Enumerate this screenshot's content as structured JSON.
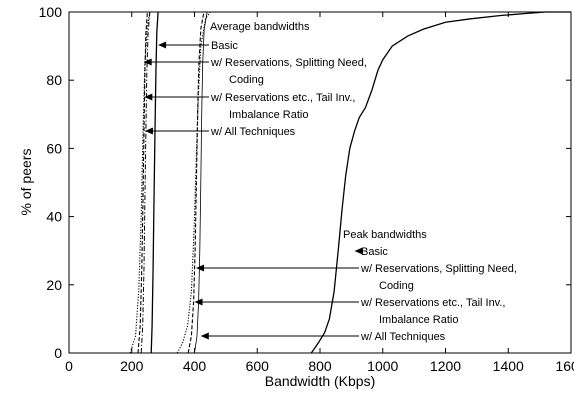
{
  "chart_data": {
    "type": "line",
    "xlabel": "Bandwidth (Kbps)",
    "ylabel": "% of peers",
    "xlim": [
      0,
      1600
    ],
    "ylim": [
      0,
      100
    ],
    "x_ticks": [
      0,
      200,
      400,
      600,
      800,
      1000,
      1200,
      1400,
      1600
    ],
    "y_ticks": [
      0,
      20,
      40,
      60,
      80,
      100
    ],
    "grid": false,
    "legend": "none",
    "series": [
      {
        "group": "Average bandwidths",
        "name": "Basic",
        "style": "solid",
        "points": [
          [
            262,
            0
          ],
          [
            265,
            8
          ],
          [
            268,
            25
          ],
          [
            271,
            45
          ],
          [
            274,
            65
          ],
          [
            277,
            82
          ],
          [
            280,
            94
          ],
          [
            284,
            100
          ]
        ]
      },
      {
        "group": "Average bandwidths",
        "name": "w/ Reservations, Splitting Need, Coding",
        "style": "dashed",
        "points": [
          [
            220,
            0
          ],
          [
            227,
            8
          ],
          [
            232,
            25
          ],
          [
            236,
            45
          ],
          [
            239,
            65
          ],
          [
            242,
            82
          ],
          [
            245,
            94
          ],
          [
            250,
            100
          ]
        ]
      },
      {
        "group": "Average bandwidths",
        "name": "w/ Reservations etc., Tail Inv., Imbalance Ratio",
        "style": "dotted",
        "points": [
          [
            195,
            0
          ],
          [
            212,
            5
          ],
          [
            222,
            18
          ],
          [
            230,
            40
          ],
          [
            236,
            65
          ],
          [
            242,
            85
          ],
          [
            250,
            96
          ],
          [
            258,
            100
          ]
        ]
      },
      {
        "group": "Average bandwidths",
        "name": "w/ All Techniques",
        "style": "dashdot",
        "points": [
          [
            230,
            0
          ],
          [
            235,
            8
          ],
          [
            239,
            25
          ],
          [
            242,
            45
          ],
          [
            245,
            65
          ],
          [
            248,
            82
          ],
          [
            252,
            94
          ],
          [
            258,
            100
          ]
        ]
      },
      {
        "group": "Peak bandwidths",
        "name": "Basic",
        "style": "solid",
        "points": [
          [
            772,
            0
          ],
          [
            780,
            1
          ],
          [
            795,
            3
          ],
          [
            815,
            6
          ],
          [
            830,
            10
          ],
          [
            845,
            18
          ],
          [
            858,
            30
          ],
          [
            870,
            42
          ],
          [
            882,
            52
          ],
          [
            895,
            60
          ],
          [
            910,
            65
          ],
          [
            925,
            69
          ],
          [
            945,
            72
          ],
          [
            965,
            77
          ],
          [
            985,
            83
          ],
          [
            1000,
            86
          ],
          [
            1030,
            90
          ],
          [
            1080,
            93
          ],
          [
            1130,
            95
          ],
          [
            1200,
            97
          ],
          [
            1280,
            98
          ],
          [
            1380,
            99
          ],
          [
            1460,
            99.6
          ],
          [
            1520,
            100
          ],
          [
            1600,
            100
          ]
        ]
      },
      {
        "group": "Peak bandwidths",
        "name": "w/ Reservations, Splitting Need, Coding",
        "style": "dashed",
        "points": [
          [
            380,
            0
          ],
          [
            390,
            5
          ],
          [
            397,
            15
          ],
          [
            402,
            30
          ],
          [
            406,
            50
          ],
          [
            410,
            70
          ],
          [
            414,
            85
          ],
          [
            420,
            95
          ],
          [
            430,
            100
          ]
        ]
      },
      {
        "group": "Peak bandwidths",
        "name": "w/ Reservations etc., Tail Inv., Imbalance Ratio",
        "style": "dotted",
        "points": [
          [
            345,
            0
          ],
          [
            362,
            3
          ],
          [
            378,
            8
          ],
          [
            390,
            18
          ],
          [
            398,
            35
          ],
          [
            405,
            55
          ],
          [
            412,
            75
          ],
          [
            420,
            90
          ],
          [
            435,
            98
          ],
          [
            450,
            100
          ]
        ]
      },
      {
        "group": "Peak bandwidths",
        "name": "w/ All Techniques",
        "style": "solid-thin",
        "points": [
          [
            400,
            0
          ],
          [
            408,
            5
          ],
          [
            413,
            15
          ],
          [
            417,
            30
          ],
          [
            420,
            50
          ],
          [
            423,
            70
          ],
          [
            426,
            85
          ],
          [
            431,
            95
          ],
          [
            440,
            100
          ]
        ]
      }
    ],
    "annotations": [
      {
        "id": "avg-title",
        "text": "Average bandwidths"
      },
      {
        "id": "avg-basic",
        "text": "Basic",
        "target": [
          284,
          90
        ]
      },
      {
        "id": "avg-res-1",
        "text": "w/ Reservations, Splitting Need,",
        "target": [
          238,
          85
        ]
      },
      {
        "id": "avg-res-2",
        "text": "Coding"
      },
      {
        "id": "avg-tail-1",
        "text": "w/ Reservations etc., Tail Inv.,",
        "target": [
          240,
          75
        ]
      },
      {
        "id": "avg-tail-2",
        "text": "Imbalance Ratio"
      },
      {
        "id": "avg-all",
        "text": "w/ All Techniques",
        "target": [
          242,
          65
        ]
      },
      {
        "id": "peak-title",
        "text": "Peak bandwidths"
      },
      {
        "id": "peak-basic",
        "text": "Basic",
        "target": [
          910,
          30
        ]
      },
      {
        "id": "peak-res-1",
        "text": "w/ Reservations, Splitting Need,",
        "target": [
          405,
          25
        ]
      },
      {
        "id": "peak-res-2",
        "text": "Coding"
      },
      {
        "id": "peak-tail-1",
        "text": "w/ Reservations etc., Tail Inv.,",
        "target": [
          400,
          15
        ]
      },
      {
        "id": "peak-tail-2",
        "text": "Imbalance Ratio"
      },
      {
        "id": "peak-all",
        "text": "w/ All Techniques",
        "target": [
          420,
          5
        ]
      }
    ]
  }
}
